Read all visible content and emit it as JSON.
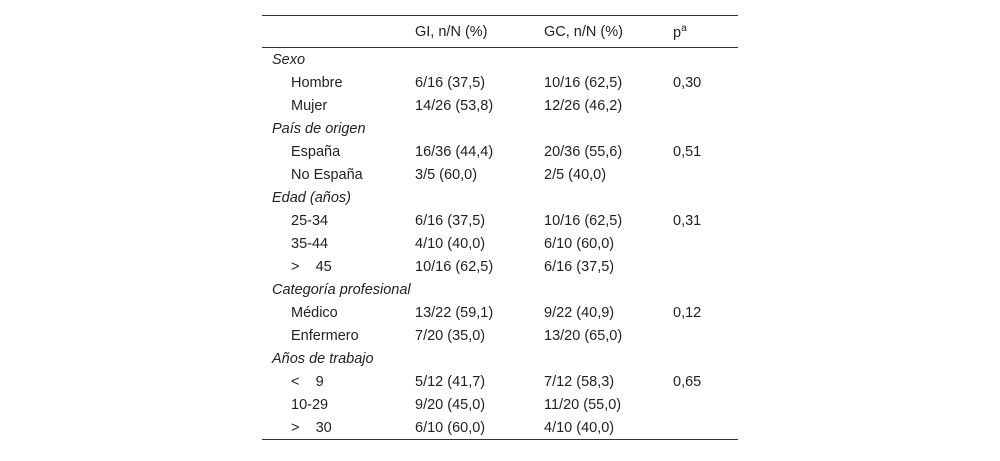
{
  "table": {
    "header": {
      "gi": "GI, n/N (%)",
      "gc": "GC, n/N (%)",
      "p": "p",
      "p_sup": "a"
    },
    "groups": [
      {
        "title": "Sexo",
        "rows": [
          [
            "Hombre",
            "6/16 (37,5)",
            "10/16 (62,5)",
            "0,30"
          ],
          [
            "Mujer",
            "14/26 (53,8)",
            "12/26 (46,2)"
          ]
        ]
      },
      {
        "title": "País de origen",
        "rows": [
          [
            "España",
            "16/36 (44,4)",
            "20/36 (55,6)",
            "0,51"
          ],
          [
            "No España",
            "3/5 (60,0)",
            "2/5 (40,0)"
          ]
        ]
      },
      {
        "title": "Edad (años)",
        "rows": [
          [
            "25-34",
            "6/16 (37,5)",
            "10/16 (62,5)",
            "0,31"
          ],
          [
            "35-44",
            "4/10 (40,0)",
            "6/10 (60,0)"
          ],
          [
            ">    45",
            "10/16 (62,5)",
            "6/16 (37,5)"
          ]
        ]
      },
      {
        "title": "Categoría profesional",
        "rows": [
          [
            "Médico",
            "13/22 (59,1)",
            "9/22 (40,9)",
            "0,12"
          ],
          [
            "Enfermero",
            "7/20 (35,0)",
            "13/20 (65,0)"
          ]
        ]
      },
      {
        "title": "Años de trabajo",
        "rows": [
          [
            "<    9",
            "5/12 (41,7)",
            "7/12 (58,3)",
            "0,65"
          ],
          [
            "10-29",
            "9/20 (45,0)",
            "11/20 (55,0)"
          ],
          [
            ">    30",
            "6/10 (60,0)",
            "4/10 (40,0)"
          ]
        ]
      }
    ]
  }
}
